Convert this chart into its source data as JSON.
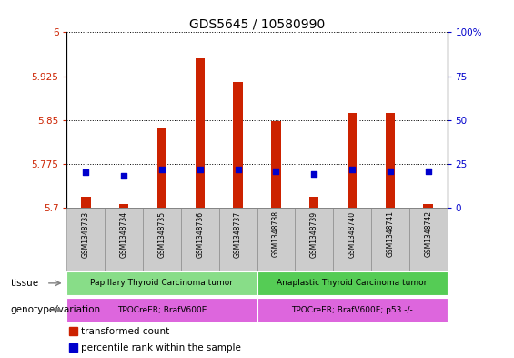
{
  "title": "GDS5645 / 10580990",
  "samples": [
    "GSM1348733",
    "GSM1348734",
    "GSM1348735",
    "GSM1348736",
    "GSM1348737",
    "GSM1348738",
    "GSM1348739",
    "GSM1348740",
    "GSM1348741",
    "GSM1348742"
  ],
  "transformed_counts": [
    5.718,
    5.706,
    5.835,
    5.955,
    5.915,
    5.848,
    5.718,
    5.862,
    5.862,
    5.706
  ],
  "percentile_ranks": [
    20,
    18,
    22,
    22,
    22,
    21,
    19,
    22,
    21,
    21
  ],
  "ylim_left": [
    5.7,
    6.0
  ],
  "ylim_right": [
    0,
    100
  ],
  "yticks_left": [
    5.7,
    5.775,
    5.85,
    5.925,
    6.0
  ],
  "yticks_right": [
    0,
    25,
    50,
    75,
    100
  ],
  "ytick_labels_left": [
    "5.7",
    "5.775",
    "5.85",
    "5.925",
    "6"
  ],
  "ytick_labels_right": [
    "0",
    "25",
    "50",
    "75",
    "100%"
  ],
  "bar_color": "#cc2200",
  "dot_color": "#0000cc",
  "bar_width": 0.25,
  "tissue_labels": [
    "Papillary Thyroid Carcinoma tumor",
    "Anaplastic Thyroid Carcinoma tumor"
  ],
  "tissue_colors": [
    "#88dd88",
    "#55cc55"
  ],
  "tissue_ranges": [
    [
      0,
      5
    ],
    [
      5,
      10
    ]
  ],
  "genotype_labels": [
    "TPOCreER; BrafV600E",
    "TPOCreER; BrafV600E; p53 -/-"
  ],
  "genotype_color": "#dd66dd",
  "genotype_ranges": [
    [
      0,
      5
    ],
    [
      5,
      10
    ]
  ],
  "legend_transformed": "transformed count",
  "legend_percentile": "percentile rank within the sample",
  "sample_box_color": "#cccccc",
  "axis_bg": "#ffffff"
}
